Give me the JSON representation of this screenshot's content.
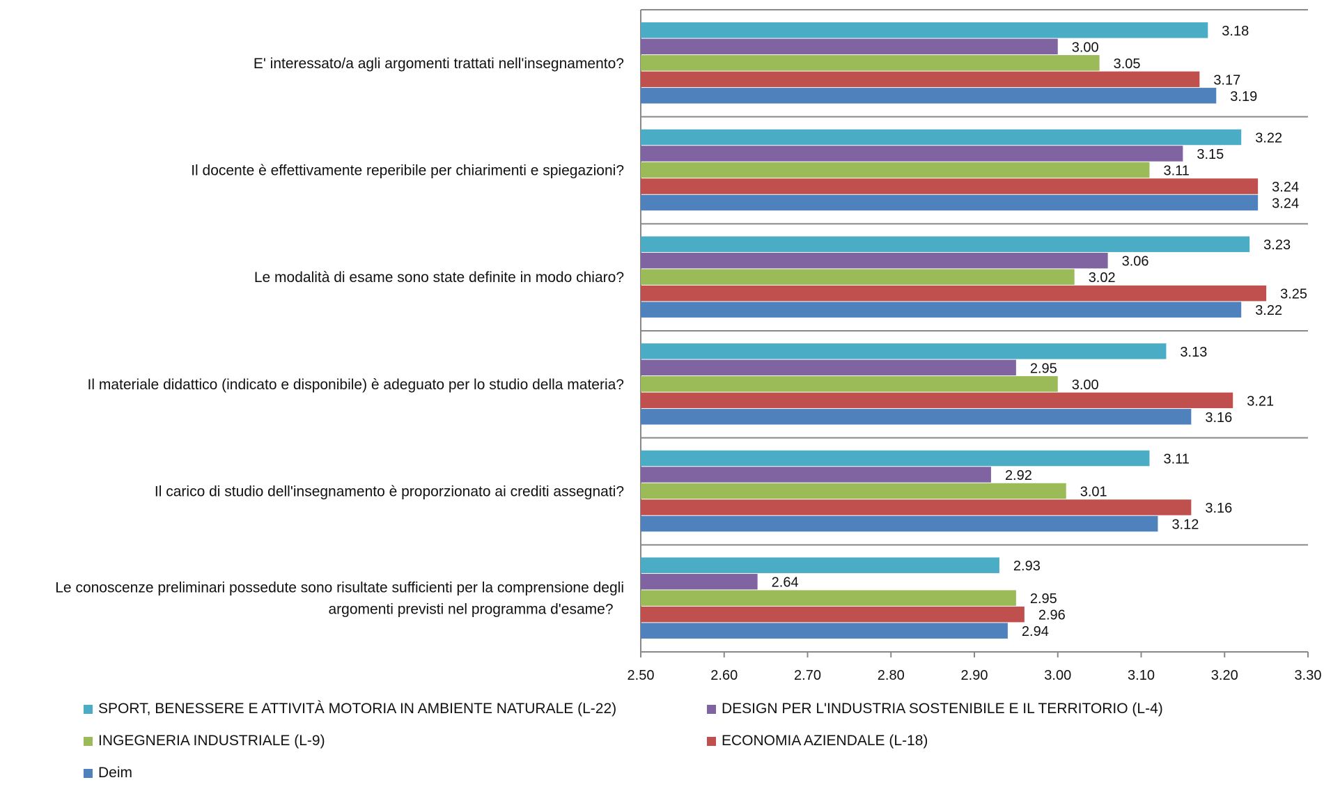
{
  "chart_data": {
    "type": "bar",
    "orientation": "horizontal",
    "categories": [
      "E' interessato/a agli argomenti trattati nell'insegnamento?",
      "Il docente è effettivamente reperibile per chiarimenti e spiegazioni?",
      "Le modalità di esame sono state definite in modo chiaro?",
      "Il materiale didattico (indicato e disponibile) è adeguato per lo studio della materia?",
      "Il carico di studio dell'insegnamento è proporzionato ai crediti assegnati?",
      "Le conoscenze preliminari possedute sono risultate sufficienti per la comprensione degli argomenti previsti nel programma d'esame?"
    ],
    "series": [
      {
        "name": "SPORT, BENESSERE E ATTIVITÀ MOTORIA IN AMBIENTE NATURALE (L-22)",
        "color": "#4BACC6",
        "values": [
          3.18,
          3.22,
          3.23,
          3.13,
          3.11,
          2.93
        ]
      },
      {
        "name": "DESIGN PER L'INDUSTRIA SOSTENIBILE E IL TERRITORIO (L-4)",
        "color": "#8064A2",
        "values": [
          3.0,
          3.15,
          3.06,
          2.95,
          2.92,
          2.64
        ]
      },
      {
        "name": "INGEGNERIA INDUSTRIALE (L-9)",
        "color": "#9BBB59",
        "values": [
          3.05,
          3.11,
          3.02,
          3.0,
          3.01,
          2.95
        ]
      },
      {
        "name": "ECONOMIA AZIENDALE (L-18)",
        "color": "#C0504D",
        "values": [
          3.17,
          3.24,
          3.25,
          3.21,
          3.16,
          2.96
        ]
      },
      {
        "name": "Deim",
        "color": "#4F81BD",
        "values": [
          3.19,
          3.24,
          3.22,
          3.16,
          3.12,
          2.94
        ]
      }
    ],
    "value_labels": [
      [
        "3.18",
        "3.22",
        "3.23",
        "3.13",
        "3.11",
        "2.93"
      ],
      [
        "3.00",
        "3.15",
        "3.06",
        "2.95",
        "2.92",
        "2.64"
      ],
      [
        "3.05",
        "3.11",
        "3.02",
        "3.00",
        "3.01",
        "2.95"
      ],
      [
        "3.17",
        "3.24",
        "3.25",
        "3.21",
        "3.16",
        "2.96"
      ],
      [
        "3.19",
        "3.24",
        "3.22",
        "3.16",
        "3.12",
        "2.94"
      ]
    ],
    "xlim": [
      2.5,
      3.3
    ],
    "xticks": [
      "2.50",
      "2.60",
      "2.70",
      "2.80",
      "2.90",
      "3.00",
      "3.10",
      "3.20",
      "3.30"
    ],
    "grid": "horizontal category separators",
    "legend_position": "bottom",
    "title": "",
    "xlabel": "",
    "ylabel": ""
  }
}
